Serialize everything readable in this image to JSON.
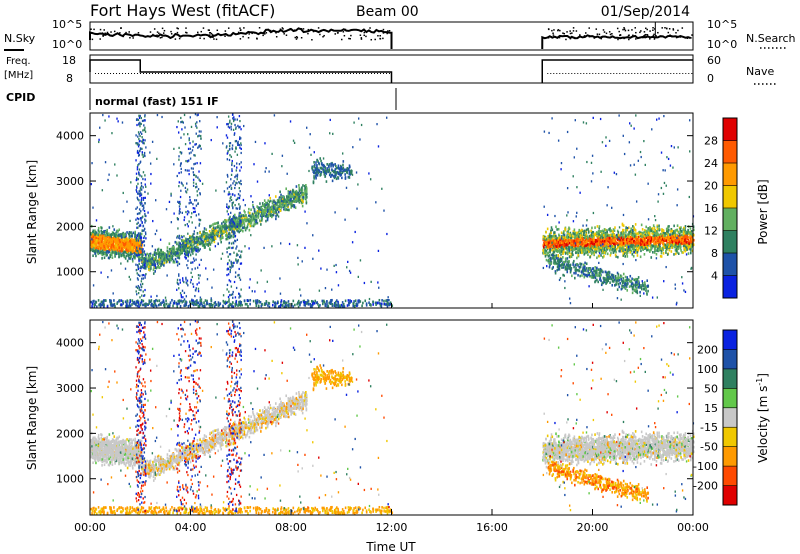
{
  "header": {
    "title": "Fort Hays West (fitACF)",
    "beam": "Beam 00",
    "date": "01/Sep/2014",
    "cpid_label": "CPID",
    "cpid_value": "normal (fast) 151 IF"
  },
  "noise_panel": {
    "left_label": "N.Sky",
    "right_label": "N.Search",
    "left_ticks": [
      "10^5",
      "10^0"
    ],
    "right_ticks": [
      "10^5",
      "10^0"
    ]
  },
  "freq_panel": {
    "left_label_1": "Freq.",
    "left_label_2": "[MHz]",
    "right_label": "Nave",
    "left_ticks": [
      "18",
      "8"
    ],
    "right_ticks": [
      "60",
      "0"
    ]
  },
  "colors": {
    "power": [
      "#0a22e0",
      "#1e52a8",
      "#2f8060",
      "#62b060",
      "#f0c800",
      "#ff9a00",
      "#ff5a00",
      "#e00000"
    ],
    "velocity": [
      "#e00000",
      "#ff4a00",
      "#ff9a00",
      "#f0c800",
      "#c8c8c8",
      "#62c84a",
      "#2f8060",
      "#1e52a8",
      "#0a22e0"
    ]
  },
  "chart_data": [
    {
      "type": "heatmap",
      "name": "power",
      "ylabel": "Slant Range [km]",
      "y_ticks": [
        "1000",
        "2000",
        "3000",
        "4000"
      ],
      "ylim": [
        200,
        4500
      ],
      "xlim": [
        0,
        24
      ],
      "colorbar_label": "Power [dB]",
      "colorbar_ticks": [
        "4",
        "8",
        "12",
        "16",
        "20",
        "24",
        "28"
      ],
      "colorbar_range": [
        0,
        30
      ],
      "features": [
        {
          "t_start": 0.0,
          "t_end": 2.0,
          "range_center": 1700,
          "range_width": 500,
          "power": 18
        },
        {
          "t_start": 2.0,
          "t_end": 8.5,
          "range_center_start": 1300,
          "range_center_end": 2900,
          "power": 10
        },
        {
          "t_start": 8.5,
          "t_end": 10.5,
          "range_center": 3300,
          "power": 6
        },
        {
          "t_start": 18.0,
          "t_end": 24.0,
          "range_center": 1700,
          "range_width": 550,
          "power": 22
        },
        {
          "t_start": 18.0,
          "t_end": 22.0,
          "range_center": 900,
          "power": 8
        }
      ]
    },
    {
      "type": "heatmap",
      "name": "velocity",
      "ylabel": "Slant Range [km]",
      "y_ticks": [
        "1000",
        "2000",
        "3000",
        "4000"
      ],
      "ylim": [
        200,
        4500
      ],
      "xlim": [
        0,
        24
      ],
      "xlabel": "Time UT",
      "x_ticks": [
        "00:00",
        "04:00",
        "08:00",
        "12:00",
        "16:00",
        "20:00",
        "00:00"
      ],
      "colorbar_label": "Velocity [m s-1]",
      "colorbar_ticks": [
        "-200",
        "-100",
        "-50",
        "-15",
        "15",
        "50",
        "100",
        "200"
      ],
      "colorbar_range": [
        -250,
        250
      ]
    }
  ]
}
